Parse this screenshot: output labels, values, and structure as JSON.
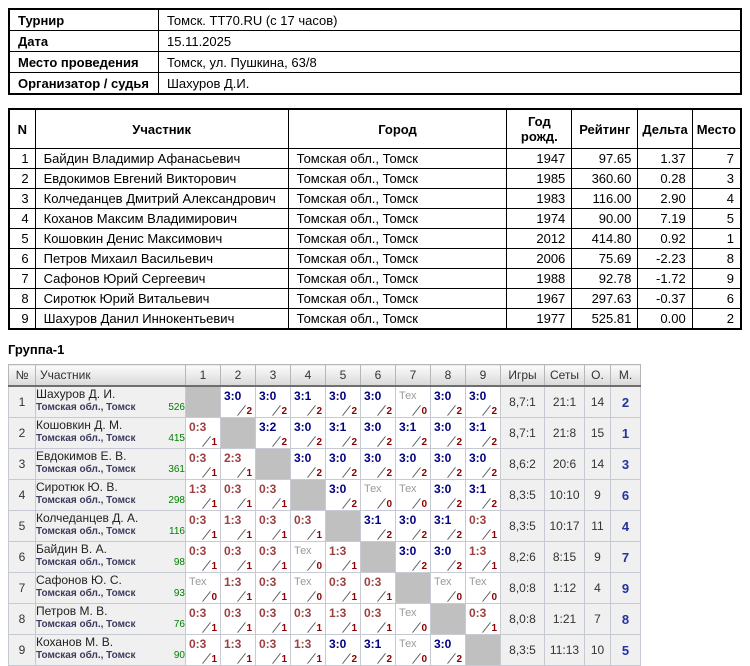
{
  "info_table": {
    "rows": [
      {
        "label": "Турнир",
        "value": "Томск. TT70.RU (с 17 часов)"
      },
      {
        "label": "Дата",
        "value": "15.11.2025"
      },
      {
        "label": "Место проведения",
        "value": "Томск, ул. Пушкина, 63/8"
      },
      {
        "label": "Организатор / судья",
        "value": "Шахуров Д.И."
      }
    ]
  },
  "participants_table": {
    "headers": [
      "N",
      "Участник",
      "Город",
      "Год рожд.",
      "Рейтинг",
      "Дельта",
      "Место"
    ],
    "rows": [
      [
        "1",
        "Байдин Владимир Афанасьевич",
        "Томская обл., Томск",
        "1947",
        "97.65",
        "1.37",
        "7"
      ],
      [
        "2",
        "Евдокимов Евгений Викторович",
        "Томская обл., Томск",
        "1985",
        "360.60",
        "0.28",
        "3"
      ],
      [
        "3",
        "Колчеданцев Дмитрий Александрович",
        "Томская обл., Томск",
        "1983",
        "116.00",
        "2.90",
        "4"
      ],
      [
        "4",
        "Коханов Максим Владимирович",
        "Томская обл., Томск",
        "1974",
        "90.00",
        "7.19",
        "5"
      ],
      [
        "5",
        "Кошовкин Денис Максимович",
        "Томская обл., Томск",
        "2012",
        "414.80",
        "0.92",
        "1"
      ],
      [
        "6",
        "Петров Михаил Васильевич",
        "Томская обл., Томск",
        "2006",
        "75.69",
        "-2.23",
        "8"
      ],
      [
        "7",
        "Сафонов Юрий Сергеевич",
        "Томская обл., Томск",
        "1988",
        "92.78",
        "-1.72",
        "9"
      ],
      [
        "8",
        "Сиротюк Юрий Витальевич",
        "Томская обл., Томск",
        "1967",
        "297.63",
        "-0.37",
        "6"
      ],
      [
        "9",
        "Шахуров Данил Иннокентьевич",
        "Томская обл., Томск",
        "1977",
        "525.81",
        "0.00",
        "2"
      ]
    ]
  },
  "group": {
    "title": "Группа-1",
    "headers": [
      "№",
      "Участник",
      "1",
      "2",
      "3",
      "4",
      "5",
      "6",
      "7",
      "8",
      "9",
      "Игры",
      "Сеты",
      "О.",
      "М."
    ],
    "players": [
      {
        "num": "1",
        "name": "Шахуров Д. И.",
        "region": "Томская обл., Томск",
        "rating": "526",
        "results": [
          null,
          {
            "s": "3:0",
            "t": "w",
            "n": "2"
          },
          {
            "s": "3:0",
            "t": "w",
            "n": "2"
          },
          {
            "s": "3:1",
            "t": "w",
            "n": "2"
          },
          {
            "s": "3:0",
            "t": "w",
            "n": "2"
          },
          {
            "s": "3:0",
            "t": "w",
            "n": "2"
          },
          {
            "s": "Тех",
            "t": "t",
            "n": "0"
          },
          {
            "s": "3:0",
            "t": "w",
            "n": "2"
          },
          {
            "s": "3:0",
            "t": "w",
            "n": "2"
          }
        ],
        "games": "8,7:1",
        "sets": "21:1",
        "points": "14",
        "place": "2"
      },
      {
        "num": "2",
        "name": "Кошовкин Д. М.",
        "region": "Томская обл., Томск",
        "rating": "415",
        "results": [
          {
            "s": "0:3",
            "t": "l",
            "n": "1"
          },
          null,
          {
            "s": "3:2",
            "t": "w",
            "n": "2"
          },
          {
            "s": "3:0",
            "t": "w",
            "n": "2"
          },
          {
            "s": "3:1",
            "t": "w",
            "n": "2"
          },
          {
            "s": "3:0",
            "t": "w",
            "n": "2"
          },
          {
            "s": "3:1",
            "t": "w",
            "n": "2"
          },
          {
            "s": "3:0",
            "t": "w",
            "n": "2"
          },
          {
            "s": "3:1",
            "t": "w",
            "n": "2"
          }
        ],
        "games": "8,7:1",
        "sets": "21:8",
        "points": "15",
        "place": "1"
      },
      {
        "num": "3",
        "name": "Евдокимов Е. В.",
        "region": "Томская обл., Томск",
        "rating": "361",
        "results": [
          {
            "s": "0:3",
            "t": "l",
            "n": "1"
          },
          {
            "s": "2:3",
            "t": "l",
            "n": "1"
          },
          null,
          {
            "s": "3:0",
            "t": "w",
            "n": "2"
          },
          {
            "s": "3:0",
            "t": "w",
            "n": "2"
          },
          {
            "s": "3:0",
            "t": "w",
            "n": "2"
          },
          {
            "s": "3:0",
            "t": "w",
            "n": "2"
          },
          {
            "s": "3:0",
            "t": "w",
            "n": "2"
          },
          {
            "s": "3:0",
            "t": "w",
            "n": "2"
          }
        ],
        "games": "8,6:2",
        "sets": "20:6",
        "points": "14",
        "place": "3"
      },
      {
        "num": "4",
        "name": "Сиротюк Ю. В.",
        "region": "Томская обл., Томск",
        "rating": "298",
        "results": [
          {
            "s": "1:3",
            "t": "l",
            "n": "1"
          },
          {
            "s": "0:3",
            "t": "l",
            "n": "1"
          },
          {
            "s": "0:3",
            "t": "l",
            "n": "1"
          },
          null,
          {
            "s": "3:0",
            "t": "w",
            "n": "2"
          },
          {
            "s": "Тех",
            "t": "t",
            "n": "0"
          },
          {
            "s": "Тех",
            "t": "t",
            "n": "0"
          },
          {
            "s": "3:0",
            "t": "w",
            "n": "2"
          },
          {
            "s": "3:1",
            "t": "w",
            "n": "2"
          }
        ],
        "games": "8,3:5",
        "sets": "10:10",
        "points": "9",
        "place": "6"
      },
      {
        "num": "5",
        "name": "Колчеданцев Д. А.",
        "region": "Томская обл., Томск",
        "rating": "116",
        "results": [
          {
            "s": "0:3",
            "t": "l",
            "n": "1"
          },
          {
            "s": "1:3",
            "t": "l",
            "n": "1"
          },
          {
            "s": "0:3",
            "t": "l",
            "n": "1"
          },
          {
            "s": "0:3",
            "t": "l",
            "n": "1"
          },
          null,
          {
            "s": "3:1",
            "t": "w",
            "n": "2"
          },
          {
            "s": "3:0",
            "t": "w",
            "n": "2"
          },
          {
            "s": "3:1",
            "t": "w",
            "n": "2"
          },
          {
            "s": "0:3",
            "t": "l",
            "n": "1"
          }
        ],
        "games": "8,3:5",
        "sets": "10:17",
        "points": "11",
        "place": "4"
      },
      {
        "num": "6",
        "name": "Байдин В. А.",
        "region": "Томская обл., Томск",
        "rating": "98",
        "results": [
          {
            "s": "0:3",
            "t": "l",
            "n": "1"
          },
          {
            "s": "0:3",
            "t": "l",
            "n": "1"
          },
          {
            "s": "0:3",
            "t": "l",
            "n": "1"
          },
          {
            "s": "Тех",
            "t": "t",
            "n": "0"
          },
          {
            "s": "1:3",
            "t": "l",
            "n": "1"
          },
          null,
          {
            "s": "3:0",
            "t": "w",
            "n": "2"
          },
          {
            "s": "3:0",
            "t": "w",
            "n": "2"
          },
          {
            "s": "1:3",
            "t": "l",
            "n": "1"
          }
        ],
        "games": "8,2:6",
        "sets": "8:15",
        "points": "9",
        "place": "7"
      },
      {
        "num": "7",
        "name": "Сафонов Ю. С.",
        "region": "Томская обл., Томск",
        "rating": "93",
        "results": [
          {
            "s": "Тех",
            "t": "t",
            "n": "0"
          },
          {
            "s": "1:3",
            "t": "l",
            "n": "1"
          },
          {
            "s": "0:3",
            "t": "l",
            "n": "1"
          },
          {
            "s": "Тех",
            "t": "t",
            "n": "0"
          },
          {
            "s": "0:3",
            "t": "l",
            "n": "1"
          },
          {
            "s": "0:3",
            "t": "l",
            "n": "1"
          },
          null,
          {
            "s": "Тех",
            "t": "t",
            "n": "0"
          },
          {
            "s": "Тех",
            "t": "t",
            "n": "0"
          }
        ],
        "games": "8,0:8",
        "sets": "1:12",
        "points": "4",
        "place": "9"
      },
      {
        "num": "8",
        "name": "Петров М. В.",
        "region": "Томская обл., Томск",
        "rating": "76",
        "results": [
          {
            "s": "0:3",
            "t": "l",
            "n": "1"
          },
          {
            "s": "0:3",
            "t": "l",
            "n": "1"
          },
          {
            "s": "0:3",
            "t": "l",
            "n": "1"
          },
          {
            "s": "0:3",
            "t": "l",
            "n": "1"
          },
          {
            "s": "1:3",
            "t": "l",
            "n": "1"
          },
          {
            "s": "0:3",
            "t": "l",
            "n": "1"
          },
          {
            "s": "Тех",
            "t": "t",
            "n": "0"
          },
          null,
          {
            "s": "0:3",
            "t": "l",
            "n": "1"
          }
        ],
        "games": "8,0:8",
        "sets": "1:21",
        "points": "7",
        "place": "8"
      },
      {
        "num": "9",
        "name": "Коханов М. В.",
        "region": "Томская обл., Томск",
        "rating": "90",
        "results": [
          {
            "s": "0:3",
            "t": "l",
            "n": "1"
          },
          {
            "s": "1:3",
            "t": "l",
            "n": "1"
          },
          {
            "s": "0:3",
            "t": "l",
            "n": "1"
          },
          {
            "s": "1:3",
            "t": "l",
            "n": "1"
          },
          {
            "s": "3:0",
            "t": "w",
            "n": "2"
          },
          {
            "s": "3:1",
            "t": "w",
            "n": "2"
          },
          {
            "s": "Тех",
            "t": "t",
            "n": "0"
          },
          {
            "s": "3:0",
            "t": "w",
            "n": "2"
          },
          null
        ],
        "games": "8,3:5",
        "sets": "11:13",
        "points": "10",
        "place": "5"
      }
    ]
  },
  "colors": {
    "win_score": "#000080",
    "loss_score": "#9c4040",
    "tech_score": "#9a9a9a",
    "game_point": "#8b0000",
    "rating_green": "#008000",
    "place_navy": "#2233a0",
    "self_cell": "#c0c0c0",
    "info_cell_bg": "#f0f0f0"
  }
}
